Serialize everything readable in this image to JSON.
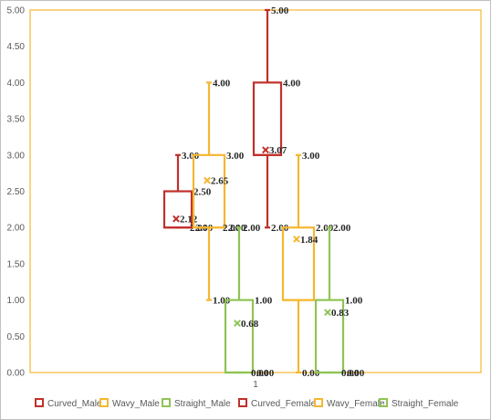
{
  "chart_data": {
    "type": "box",
    "categories": [
      "1"
    ],
    "ylim": [
      0,
      5
    ],
    "y_ticks": [
      "0.00",
      "0.50",
      "1.00",
      "1.50",
      "2.00",
      "2.50",
      "3.00",
      "3.50",
      "4.00",
      "4.50",
      "5.00"
    ],
    "grid": false,
    "legend_position": "bottom",
    "series": [
      {
        "name": "Curved_Male",
        "color": "#c0302a",
        "min": 2.0,
        "q1": 2.0,
        "median": 2.0,
        "q3": 2.5,
        "max": 3.0,
        "mean": 2.12,
        "labels": {
          "max": "3.00",
          "q3": "2.50",
          "mean": "2.12",
          "median": "2.00",
          "q1": "2.00"
        }
      },
      {
        "name": "Wavy_Male",
        "color": "#f5b731",
        "min": 1.0,
        "q1": 2.0,
        "median": 2.0,
        "q3": 3.0,
        "max": 4.0,
        "mean": 2.65,
        "labels": {
          "max": "4.00",
          "q3": "3.00",
          "mean": "2.65",
          "median": "2.00",
          "q1": "2.00",
          "min": "1.00"
        }
      },
      {
        "name": "Straight_Male",
        "color": "#8fc454",
        "min": 0.0,
        "q1": 0.0,
        "median": 0.0,
        "q3": 1.0,
        "max": 2.0,
        "mean": 0.68,
        "labels": {
          "max": "2.00",
          "q3": "1.00",
          "mean": "0.68",
          "median": "0.00",
          "q1": "0.00"
        }
      },
      {
        "name": "Curved_Female",
        "color": "#c0302a",
        "min": 2.0,
        "q1": 3.0,
        "median": 3.0,
        "q3": 4.0,
        "max": 5.0,
        "mean": 3.07,
        "labels": {
          "max": "5.00",
          "q3": "4.00",
          "mean": "3.07",
          "min": "2.00"
        }
      },
      {
        "name": "Wavy_Female",
        "color": "#f5b731",
        "min": 0.0,
        "q1": 1.0,
        "median": 1.0,
        "q3": 2.0,
        "max": 3.0,
        "mean": 1.84,
        "labels": {
          "max": "3.00",
          "q3": "2.00",
          "mean": "1.84",
          "min": "0.00"
        }
      },
      {
        "name": "Straight_Female",
        "color": "#8fc454",
        "min": 0.0,
        "q1": 0.0,
        "median": 0.0,
        "q3": 1.0,
        "max": 2.0,
        "mean": 0.83,
        "labels": {
          "max": "2.00",
          "q3": "1.00",
          "mean": "0.83",
          "median": "0.00",
          "q1": "0.00"
        }
      }
    ]
  }
}
